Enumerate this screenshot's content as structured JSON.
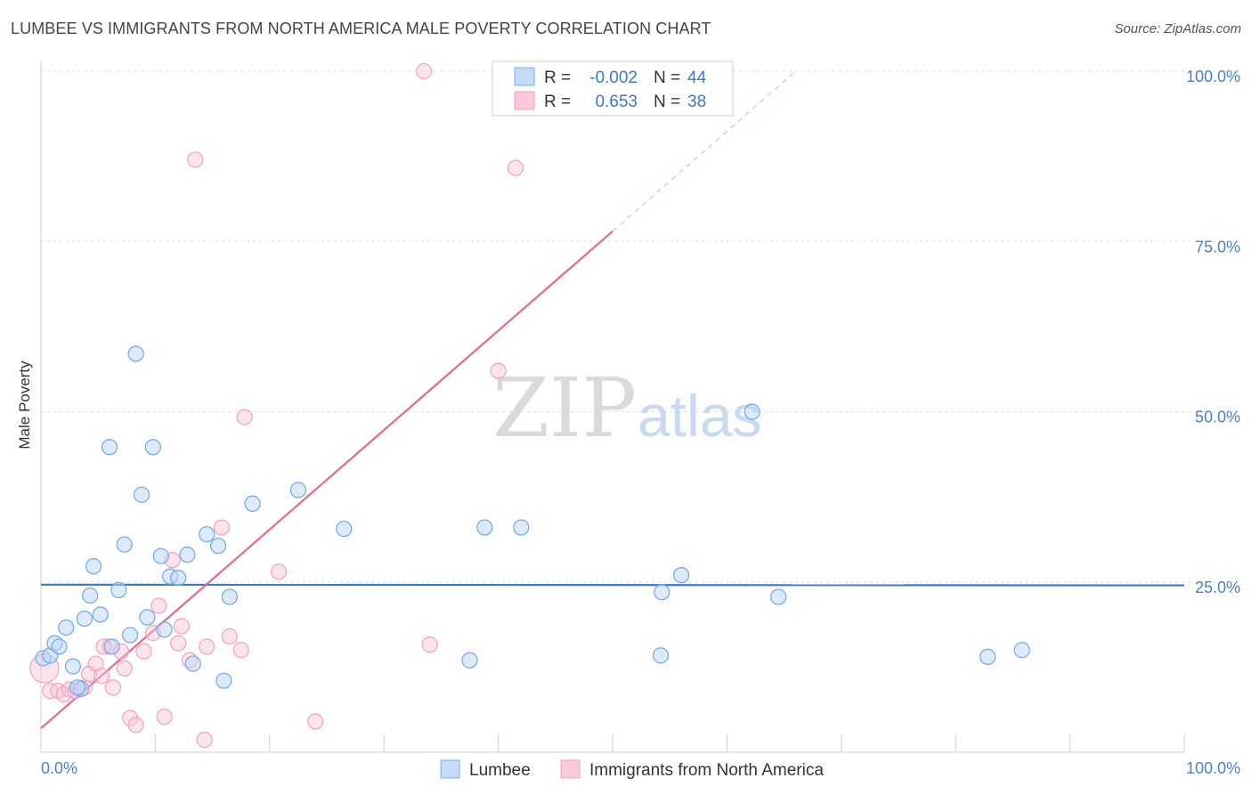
{
  "title": "LUMBEE VS IMMIGRANTS FROM NORTH AMERICA MALE POVERTY CORRELATION CHART",
  "source": "Source: ZipAtlas.com",
  "watermark": {
    "zip": "ZIP",
    "atlas": "atlas"
  },
  "colors": {
    "blue": "#6fa8e6",
    "blue_line": "#3b78d4",
    "pink": "#f0a2bd",
    "pink_line": "#e8668f",
    "axis_text": "#4a7fd0"
  },
  "legend": {
    "series": [
      {
        "r_label": "R =",
        "r_value": "-0.002",
        "n_label": "N =",
        "n_value": "44"
      },
      {
        "r_label": "R =",
        "r_value": "0.653",
        "n_label": "N =",
        "n_value": "38"
      }
    ]
  },
  "chart_data": {
    "type": "scatter",
    "title": "LUMBEE VS IMMIGRANTS FROM NORTH AMERICA MALE POVERTY CORRELATION CHART",
    "xlabel": "",
    "ylabel": "Male Poverty",
    "xlim": [
      0,
      100
    ],
    "ylim": [
      0,
      100
    ],
    "x_tick_labels": [
      "0.0%",
      "100.0%"
    ],
    "y_tick_labels": [
      "25.0%",
      "50.0%",
      "75.0%",
      "100.0%"
    ],
    "y_ticks": [
      25,
      50,
      75,
      100
    ],
    "series": [
      {
        "name": "Lumbee",
        "r": -0.002,
        "n": 44,
        "trend": {
          "x0": 0,
          "y0": 24.6,
          "x1": 100,
          "y1": 24.5,
          "style": "solid"
        },
        "points": [
          [
            0.2,
            13.8
          ],
          [
            0.8,
            14.2
          ],
          [
            1.2,
            16.0
          ],
          [
            1.6,
            15.5
          ],
          [
            2.2,
            18.3
          ],
          [
            2.8,
            12.6
          ],
          [
            3.5,
            9.3
          ],
          [
            3.8,
            19.6
          ],
          [
            4.3,
            23.0
          ],
          [
            4.6,
            27.3
          ],
          [
            5.2,
            20.2
          ],
          [
            6.2,
            15.5
          ],
          [
            6.8,
            23.8
          ],
          [
            7.3,
            30.5
          ],
          [
            7.8,
            17.2
          ],
          [
            8.3,
            58.5
          ],
          [
            8.8,
            37.8
          ],
          [
            9.3,
            19.8
          ],
          [
            9.8,
            44.8
          ],
          [
            10.5,
            28.8
          ],
          [
            10.8,
            18.0
          ],
          [
            11.3,
            25.8
          ],
          [
            12.0,
            25.6
          ],
          [
            12.8,
            29.0
          ],
          [
            13.3,
            13.0
          ],
          [
            14.5,
            32.0
          ],
          [
            15.5,
            30.3
          ],
          [
            16.0,
            10.5
          ],
          [
            16.5,
            22.8
          ],
          [
            18.5,
            36.5
          ],
          [
            22.5,
            38.5
          ],
          [
            26.5,
            32.8
          ],
          [
            37.5,
            13.5
          ],
          [
            38.8,
            33.0
          ],
          [
            42.0,
            33.0
          ],
          [
            54.2,
            14.2
          ],
          [
            54.3,
            23.5
          ],
          [
            56.0,
            26.0
          ],
          [
            62.2,
            50.0
          ],
          [
            64.5,
            22.8
          ],
          [
            82.8,
            14.0
          ],
          [
            85.8,
            15.0
          ],
          [
            6.0,
            44.8
          ],
          [
            3.2,
            9.5
          ]
        ]
      },
      {
        "name": "Immigrants from North America",
        "r": 0.653,
        "n": 38,
        "trend": {
          "x0": 0,
          "y0": 3.5,
          "x1": 50,
          "y1": 76.5,
          "dash_x1": 66,
          "dash_y1": 100,
          "style": "solid+dashed"
        },
        "points": [
          [
            0.3,
            12.3
          ],
          [
            0.8,
            9.0
          ],
          [
            1.5,
            9.0
          ],
          [
            2.0,
            8.5
          ],
          [
            2.5,
            9.2
          ],
          [
            3.0,
            9.0
          ],
          [
            3.8,
            9.5
          ],
          [
            4.2,
            11.5
          ],
          [
            4.8,
            13.0
          ],
          [
            5.3,
            11.2
          ],
          [
            6.0,
            15.5
          ],
          [
            6.3,
            9.5
          ],
          [
            7.0,
            14.8
          ],
          [
            7.3,
            12.3
          ],
          [
            7.8,
            5.0
          ],
          [
            8.3,
            4.0
          ],
          [
            9.0,
            14.8
          ],
          [
            9.8,
            17.5
          ],
          [
            10.3,
            21.5
          ],
          [
            10.8,
            5.2
          ],
          [
            11.5,
            28.2
          ],
          [
            12.0,
            16.0
          ],
          [
            12.3,
            18.5
          ],
          [
            13.0,
            13.5
          ],
          [
            13.5,
            87.0
          ],
          [
            14.3,
            1.8
          ],
          [
            14.5,
            15.5
          ],
          [
            15.8,
            33.0
          ],
          [
            16.5,
            17.0
          ],
          [
            17.5,
            15.0
          ],
          [
            17.8,
            49.2
          ],
          [
            20.8,
            26.5
          ],
          [
            24.0,
            4.5
          ],
          [
            33.5,
            100.0
          ],
          [
            34.0,
            15.8
          ],
          [
            40.0,
            56.0
          ],
          [
            41.5,
            85.8
          ],
          [
            5.5,
            15.5
          ]
        ]
      }
    ],
    "legend_entries": [
      "Lumbee",
      "Immigrants from North America"
    ],
    "legend_placement": "top-center"
  }
}
